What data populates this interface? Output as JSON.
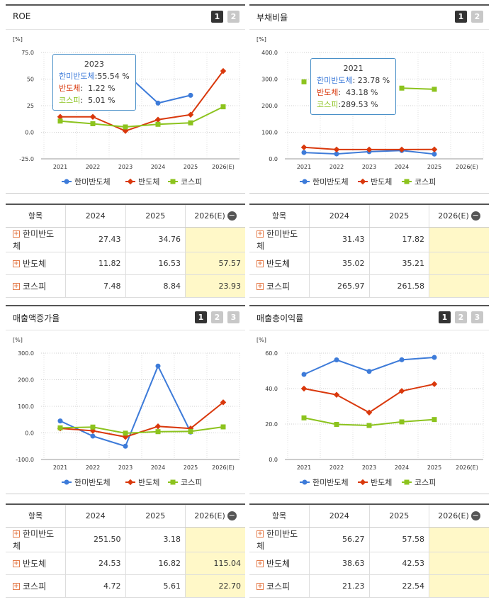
{
  "colors": {
    "hanmi": "#3d7bd9",
    "semi": "#d9380c",
    "kospi": "#8cc31e"
  },
  "legend": [
    "한미반도체",
    "반도체",
    "코스피"
  ],
  "panels": [
    {
      "title": "ROE",
      "tabs": [
        "1",
        "2"
      ],
      "unit": "[%]",
      "chart_data": {
        "type": "line",
        "title": "ROE",
        "ylabel": "[%]",
        "categories": [
          "2021",
          "2022",
          "2023",
          "2024",
          "2025",
          "2026(E)"
        ],
        "yticks": [
          "75.0",
          "50",
          "25",
          "0.0",
          "-25.0"
        ],
        "ylim": [
          -25,
          75
        ],
        "series": [
          {
            "name": "한미반도체",
            "values": [
              null,
              null,
              55.54,
              27.43,
              34.76,
              null
            ]
          },
          {
            "name": "반도체",
            "values": [
              14.5,
              14.5,
              1.22,
              11.82,
              16.53,
              57.57
            ]
          },
          {
            "name": "코스피",
            "values": [
              10.5,
              8.0,
              5.01,
              7.48,
              8.84,
              23.93
            ]
          }
        ]
      },
      "tooltip": {
        "year": "2023",
        "rows": [
          {
            "name": "한미반도체",
            "value": ":55.54 %"
          },
          {
            "name": "반도체",
            "value": ":  1.22 %"
          },
          {
            "name": "코스피",
            "value": ":  5.01 %"
          }
        ]
      },
      "table": {
        "headers": [
          "항목",
          "2024",
          "2025",
          "2026(E)"
        ],
        "rows": [
          [
            "한미반도체",
            "27.43",
            "34.76",
            ""
          ],
          [
            "반도체",
            "11.82",
            "16.53",
            "57.57"
          ],
          [
            "코스피",
            "7.48",
            "8.84",
            "23.93"
          ]
        ]
      }
    },
    {
      "title": "부채비율",
      "tabs": [
        "1",
        "2"
      ],
      "unit": "[%]",
      "chart_data": {
        "type": "line",
        "title": "부채비율",
        "ylabel": "[%]",
        "categories": [
          "2021",
          "2022",
          "2023",
          "2024",
          "2025",
          "2026(E)"
        ],
        "yticks": [
          "400.0",
          "300.0",
          "200.0",
          "100.0",
          "0.0"
        ],
        "ylim": [
          0,
          400
        ],
        "series": [
          {
            "name": "한미반도체",
            "values": [
              23.78,
              18.5,
              27.0,
              31.43,
              17.82,
              null
            ]
          },
          {
            "name": "반도체",
            "values": [
              43.18,
              35.0,
              35.0,
              35.02,
              35.21,
              null
            ]
          },
          {
            "name": "코스피",
            "values": [
              289.53,
              null,
              null,
              265.97,
              261.58,
              null
            ]
          }
        ]
      },
      "tooltip": {
        "year": "2021",
        "rows": [
          {
            "name": "한미반도체",
            "value": ": 23.78 %"
          },
          {
            "name": "반도체",
            "value": ":  43.18 %"
          },
          {
            "name": "코스피",
            "value": ":289.53 %"
          }
        ]
      },
      "table": {
        "headers": [
          "항목",
          "2024",
          "2025",
          "2026(E)"
        ],
        "rows": [
          [
            "한미반도체",
            "31.43",
            "17.82",
            ""
          ],
          [
            "반도체",
            "35.02",
            "35.21",
            ""
          ],
          [
            "코스피",
            "265.97",
            "261.58",
            ""
          ]
        ]
      }
    },
    {
      "title": "매출액증가율",
      "tabs": [
        "1",
        "2",
        "3"
      ],
      "unit": "[%]",
      "chart_data": {
        "type": "line",
        "title": "매출액증가율",
        "ylabel": "[%]",
        "categories": [
          "2021",
          "2022",
          "2023",
          "2024",
          "2025",
          "2026(E)"
        ],
        "yticks": [
          "300.0",
          "200.0",
          "100.0",
          "0.0",
          "-100.0"
        ],
        "ylim": [
          -100,
          300
        ],
        "series": [
          {
            "name": "한미반도체",
            "values": [
              45.0,
              -12.0,
              -50.0,
              251.5,
              3.18,
              null
            ]
          },
          {
            "name": "반도체",
            "values": [
              17.0,
              8.0,
              -15.0,
              24.53,
              16.82,
              115.04
            ]
          },
          {
            "name": "코스피",
            "values": [
              19.0,
              22.0,
              -1.0,
              4.72,
              5.61,
              22.7
            ]
          }
        ]
      },
      "tooltip": null,
      "table": {
        "headers": [
          "항목",
          "2024",
          "2025",
          "2026(E)"
        ],
        "rows": [
          [
            "한미반도체",
            "251.50",
            "3.18",
            ""
          ],
          [
            "반도체",
            "24.53",
            "16.82",
            "115.04"
          ],
          [
            "코스피",
            "4.72",
            "5.61",
            "22.70"
          ]
        ]
      }
    },
    {
      "title": "매출총이익률",
      "tabs": [
        "1",
        "2",
        "3"
      ],
      "unit": "[%]",
      "chart_data": {
        "type": "line",
        "title": "매출총이익률",
        "ylabel": "[%]",
        "categories": [
          "2021",
          "2022",
          "2023",
          "2024",
          "2025",
          "2026(E)"
        ],
        "yticks": [
          "60.0",
          "40.0",
          "20.0",
          "0.0"
        ],
        "ylim": [
          0,
          60
        ],
        "series": [
          {
            "name": "한미반도체",
            "values": [
              48.0,
              56.2,
              49.7,
              56.27,
              57.58,
              null
            ]
          },
          {
            "name": "반도체",
            "values": [
              40.0,
              36.5,
              26.5,
              38.63,
              42.53,
              null
            ]
          },
          {
            "name": "코스피",
            "values": [
              23.5,
              19.8,
              19.2,
              21.23,
              22.54,
              null
            ]
          }
        ]
      },
      "tooltip": null,
      "table": {
        "headers": [
          "항목",
          "2024",
          "2025",
          "2026(E)"
        ],
        "rows": [
          [
            "한미반도체",
            "56.27",
            "57.58",
            ""
          ],
          [
            "반도체",
            "38.63",
            "42.53",
            ""
          ],
          [
            "코스피",
            "21.23",
            "22.54",
            ""
          ]
        ]
      }
    }
  ]
}
